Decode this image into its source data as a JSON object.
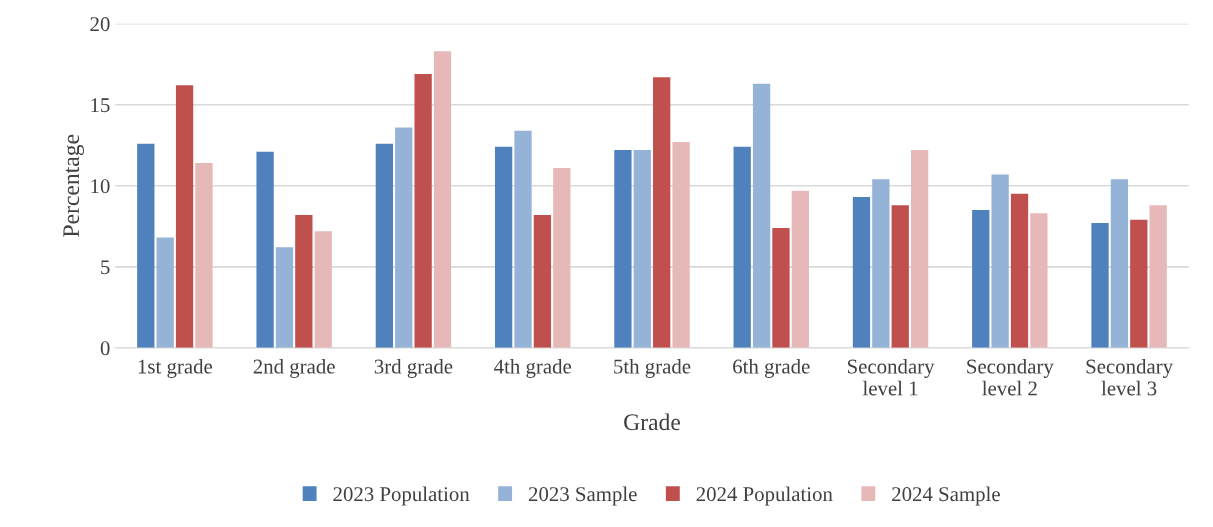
{
  "chart_data": {
    "type": "bar",
    "xlabel": "Grade",
    "ylabel": "Percentage",
    "categories": [
      "1st grade",
      "2nd grade",
      "3rd grade",
      "4th grade",
      "5th grade",
      "6th grade",
      "Secondary\nlevel 1",
      "Secondary\nlevel 2",
      "Secondary\nlevel 3"
    ],
    "series": [
      {
        "name": "2023 Population",
        "color": "#4f81bd",
        "values": [
          12.6,
          12.1,
          12.6,
          12.4,
          12.2,
          12.4,
          9.3,
          8.5,
          7.7
        ]
      },
      {
        "name": "2023 Sample",
        "color": "#95b3d7",
        "values": [
          6.8,
          6.2,
          13.6,
          13.4,
          12.2,
          16.3,
          10.4,
          10.7,
          10.4
        ]
      },
      {
        "name": "2024 Population",
        "color": "#c0504d",
        "values": [
          16.2,
          8.2,
          16.9,
          8.2,
          16.7,
          7.4,
          8.8,
          9.5,
          7.9
        ]
      },
      {
        "name": "2024 Sample",
        "color": "#e6b9b8",
        "values": [
          11.4,
          7.2,
          18.3,
          11.1,
          12.7,
          9.7,
          12.2,
          8.3,
          8.8
        ]
      }
    ],
    "ylim": [
      0,
      20
    ],
    "yticks": [
      0,
      5,
      10,
      15,
      20
    ],
    "grid": "y",
    "legend": "bottom"
  }
}
